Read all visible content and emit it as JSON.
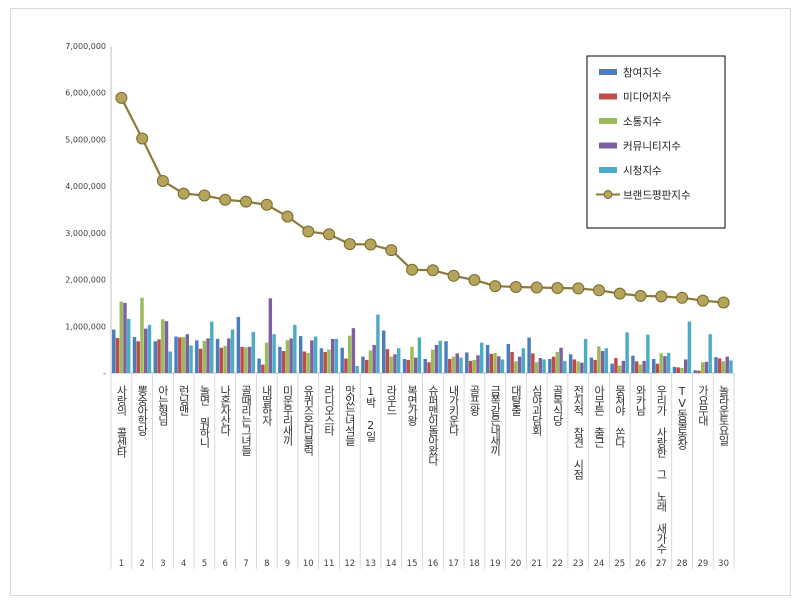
{
  "chart_data": {
    "type": "bar",
    "title": "",
    "xlabel": "",
    "ylabel": "",
    "ylim": [
      0,
      7000000
    ],
    "yticks": [
      0,
      1000000,
      2000000,
      3000000,
      4000000,
      5000000,
      6000000,
      7000000
    ],
    "ytick_labels": [
      "-",
      "1,000,000",
      "2,000,000",
      "3,000,000",
      "4,000,000",
      "5,000,000",
      "6,000,000",
      "7,000,000"
    ],
    "legend_position": "top-right",
    "ranks": [
      "1",
      "2",
      "3",
      "4",
      "5",
      "6",
      "7",
      "8",
      "9",
      "10",
      "11",
      "12",
      "13",
      "14",
      "15",
      "16",
      "17",
      "18",
      "19",
      "20",
      "21",
      "22",
      "23",
      "24",
      "25",
      "26",
      "27",
      "28",
      "29",
      "30"
    ],
    "categories": [
      "사랑의 콜센타",
      "뽕숭아학당",
      "아는형님",
      "런닝맨",
      "놀면 뭐하니",
      "나혼자산다",
      "골때리는그녀들",
      "내딸하자",
      "미운우리새끼",
      "유퀴즈온더블럭",
      "라디오스타",
      "맛있는녀석들",
      "1박 2일",
      "라우드",
      "복면가왕",
      "슈퍼맨이돌아왔다",
      "내가키운다",
      "골프왕",
      "금쪽같은내새끼",
      "대탈출",
      "심야괴담회",
      "골목식당",
      "전지적 참견 시점",
      "아무튼 출근",
      "뭉쳐야 쏜다",
      "와카남",
      "우리가 사랑한 그 노래 새가수",
      "TV동물농장",
      "가요무대",
      "놀라운토요일"
    ],
    "series": [
      {
        "name": "참여지수",
        "color": "#4a7ebb",
        "values": [
          930000,
          770000,
          680000,
          780000,
          700000,
          730000,
          1200000,
          310000,
          560000,
          790000,
          530000,
          540000,
          350000,
          910000,
          300000,
          300000,
          680000,
          440000,
          600000,
          620000,
          760000,
          300000,
          400000,
          330000,
          200000,
          370000,
          300000,
          130000,
          60000,
          340000
        ]
      },
      {
        "name": "미디어지수",
        "color": "#be4b48",
        "values": [
          750000,
          680000,
          720000,
          760000,
          520000,
          540000,
          560000,
          180000,
          470000,
          460000,
          450000,
          310000,
          280000,
          510000,
          280000,
          230000,
          300000,
          260000,
          410000,
          450000,
          420000,
          350000,
          290000,
          280000,
          320000,
          250000,
          200000,
          120000,
          50000,
          310000
        ]
      },
      {
        "name": "소통지수",
        "color": "#9bbb59",
        "values": [
          1530000,
          1610000,
          1150000,
          770000,
          690000,
          580000,
          550000,
          650000,
          700000,
          430000,
          500000,
          800000,
          480000,
          350000,
          560000,
          500000,
          350000,
          280000,
          430000,
          250000,
          230000,
          450000,
          250000,
          570000,
          160000,
          180000,
          420000,
          110000,
          230000,
          250000
        ]
      },
      {
        "name": "커뮤니티지수",
        "color": "#7d60a0",
        "values": [
          1500000,
          950000,
          1110000,
          830000,
          740000,
          740000,
          560000,
          1600000,
          740000,
          700000,
          730000,
          960000,
          600000,
          400000,
          330000,
          600000,
          420000,
          380000,
          360000,
          350000,
          320000,
          540000,
          220000,
          470000,
          260000,
          260000,
          360000,
          290000,
          240000,
          350000
        ]
      },
      {
        "name": "시청지수",
        "color": "#4bacc6",
        "values": [
          1160000,
          1030000,
          460000,
          590000,
          1100000,
          930000,
          880000,
          830000,
          1030000,
          780000,
          730000,
          150000,
          1250000,
          530000,
          760000,
          690000,
          330000,
          650000,
          290000,
          530000,
          290000,
          260000,
          730000,
          530000,
          870000,
          820000,
          430000,
          1100000,
          830000,
          270000
        ]
      }
    ],
    "line": {
      "name": "브랜드평판지수",
      "color": "#8c7a3a",
      "values": [
        5890000,
        5020000,
        4110000,
        3840000,
        3800000,
        3710000,
        3670000,
        3600000,
        3350000,
        3030000,
        2970000,
        2760000,
        2750000,
        2630000,
        2210000,
        2200000,
        2080000,
        1990000,
        1860000,
        1840000,
        1830000,
        1820000,
        1810000,
        1770000,
        1700000,
        1650000,
        1640000,
        1610000,
        1550000,
        1510000
      ]
    }
  }
}
